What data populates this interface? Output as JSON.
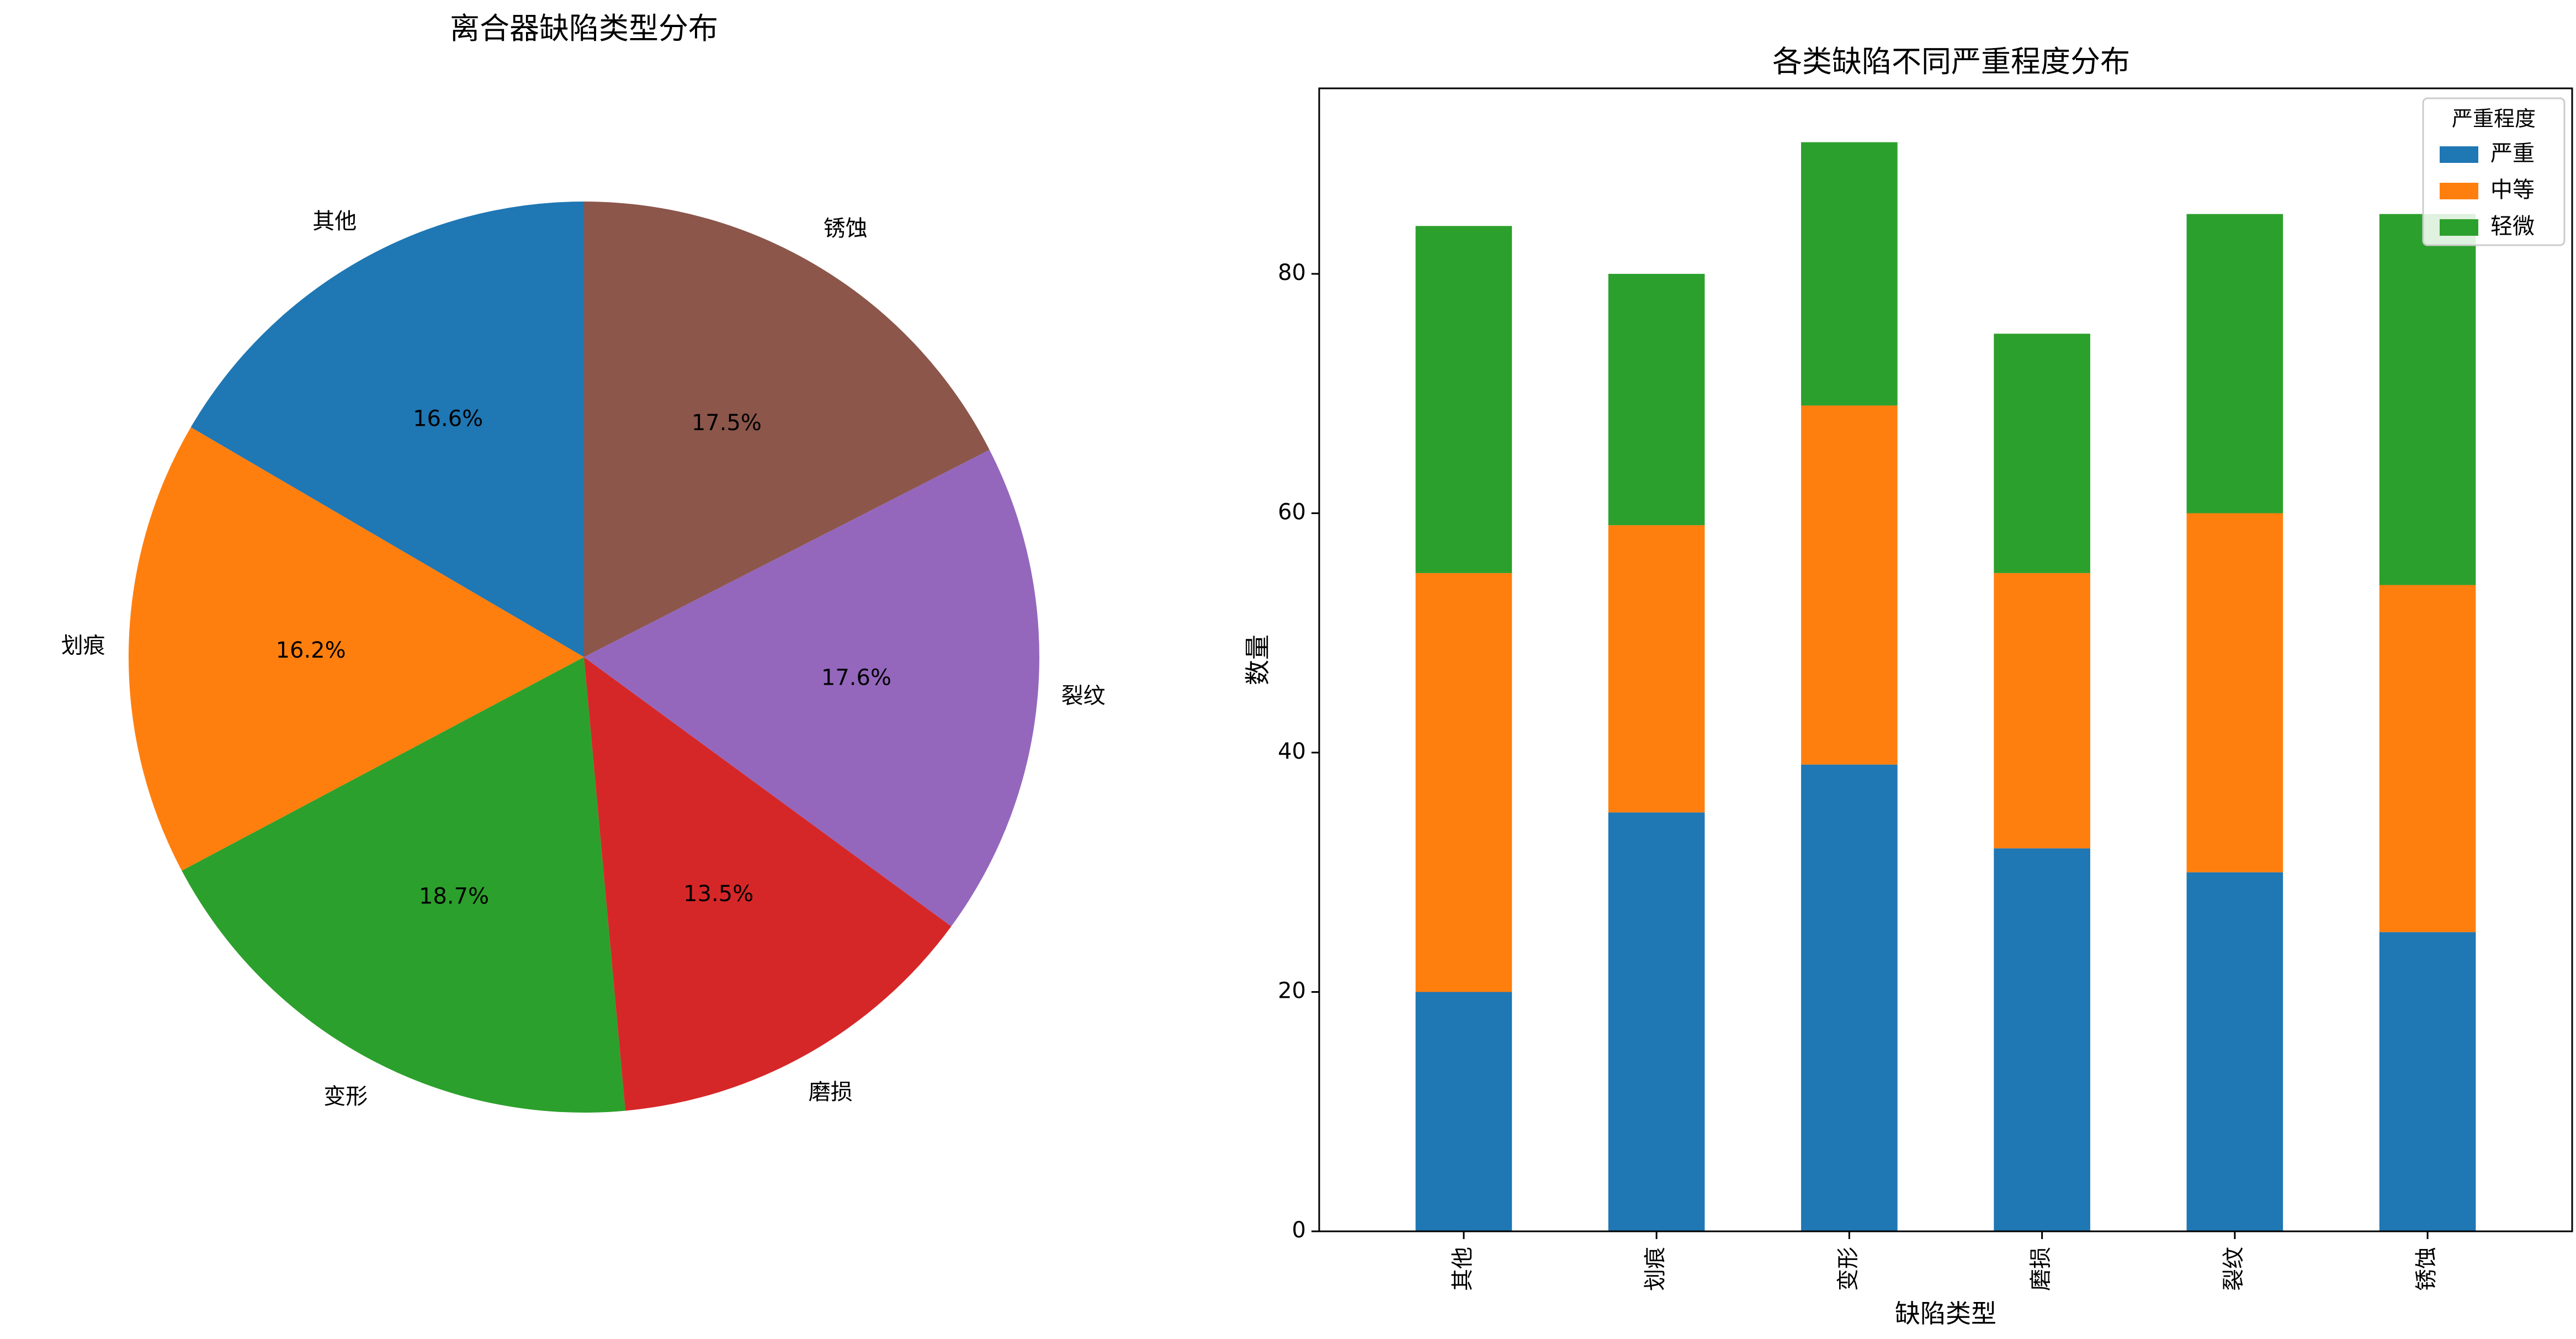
{
  "chart_data": [
    {
      "type": "pie",
      "title": "离合器缺陷类型分布",
      "categories": [
        "其他",
        "划痕",
        "变形",
        "磨损",
        "裂纹",
        "锈蚀"
      ],
      "values": [
        16.6,
        16.2,
        18.7,
        13.5,
        17.6,
        17.5
      ],
      "value_labels": [
        "16.6%",
        "16.2%",
        "18.7%",
        "13.5%",
        "17.6%",
        "17.5%"
      ],
      "colors": [
        "#1f77b4",
        "#ff7f0e",
        "#2ca02c",
        "#d62728",
        "#9467bd",
        "#8c564b"
      ],
      "start_angle": "top",
      "direction": "counterclockwise"
    },
    {
      "type": "bar",
      "stacked": true,
      "title": "各类缺陷不同严重程度分布",
      "xlabel": "缺陷类型",
      "ylabel": "数量",
      "categories": [
        "其他",
        "划痕",
        "变形",
        "磨损",
        "裂纹",
        "锈蚀"
      ],
      "series": [
        {
          "name": "严重",
          "color": "#1f77b4",
          "values": [
            20,
            35,
            39,
            32,
            30,
            25
          ]
        },
        {
          "name": "中等",
          "color": "#ff7f0e",
          "values": [
            35,
            24,
            30,
            23,
            30,
            29
          ]
        },
        {
          "name": "轻微",
          "color": "#2ca02c",
          "values": [
            29,
            21,
            22,
            20,
            25,
            31
          ]
        }
      ],
      "ylim": [
        0,
        95.5
      ],
      "yticks": [
        0,
        20,
        40,
        60,
        80
      ],
      "xtick_rotation": "vertical",
      "legend_title": "严重程度",
      "legend_position": "top-right",
      "grid": false
    }
  ]
}
